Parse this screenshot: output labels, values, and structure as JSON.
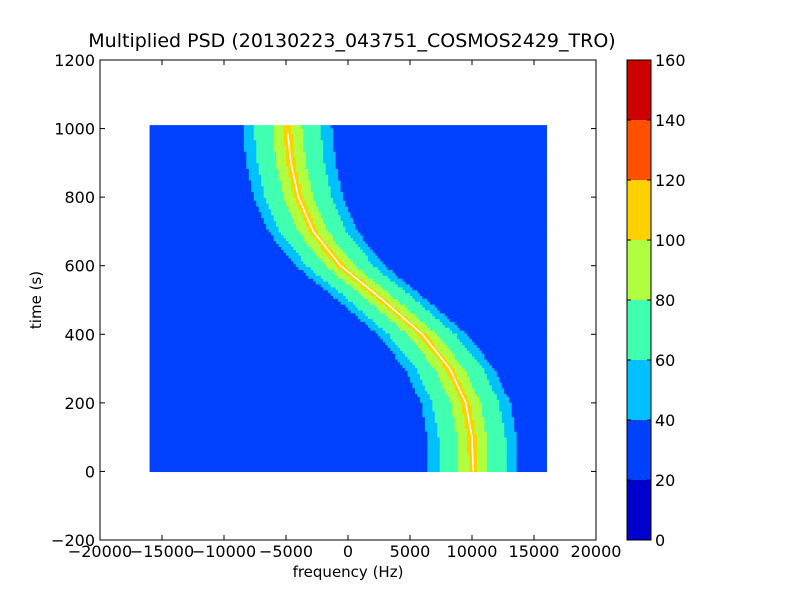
{
  "chart_data": {
    "type": "heatmap",
    "title": "Multiplied PSD (20130223_043751_COSMOS2429_TRO)",
    "xlabel": "frequency (Hz)",
    "ylabel": "time (s)",
    "xlim": [
      -20000,
      20000
    ],
    "ylim": [
      -200,
      1200
    ],
    "x_ticks": [
      "−20000",
      "−15000",
      "−10000",
      "−5000",
      "0",
      "5000",
      "10000",
      "15000",
      "20000"
    ],
    "y_ticks": [
      "−200",
      "0",
      "200",
      "400",
      "600",
      "800",
      "1000",
      "1200"
    ],
    "data_extent": {
      "x": [
        -16000,
        16000
      ],
      "y": [
        0,
        1010
      ]
    },
    "background_level": 30,
    "signal_track": [
      {
        "time": 0,
        "frequency": 10100
      },
      {
        "time": 100,
        "frequency": 10000
      },
      {
        "time": 200,
        "frequency": 9500
      },
      {
        "time": 300,
        "frequency": 8200
      },
      {
        "time": 400,
        "frequency": 6000
      },
      {
        "time": 500,
        "frequency": 2800
      },
      {
        "time": 600,
        "frequency": -600
      },
      {
        "time": 700,
        "frequency": -2800
      },
      {
        "time": 800,
        "frequency": -4000
      },
      {
        "time": 900,
        "frequency": -4600
      },
      {
        "time": 1000,
        "frequency": -4900
      }
    ],
    "signal_peak_level": 150,
    "colorbar": {
      "levels": [
        0,
        20,
        40,
        60,
        80,
        100,
        120,
        140,
        160
      ],
      "labels": [
        "0",
        "20",
        "40",
        "60",
        "80",
        "100",
        "120",
        "140",
        "160"
      ],
      "colors": [
        "#0000cd",
        "#0040ff",
        "#00c0ff",
        "#40ffb0",
        "#b0ff40",
        "#ffd000",
        "#ff5000",
        "#cd0000"
      ]
    },
    "grid": false
  }
}
